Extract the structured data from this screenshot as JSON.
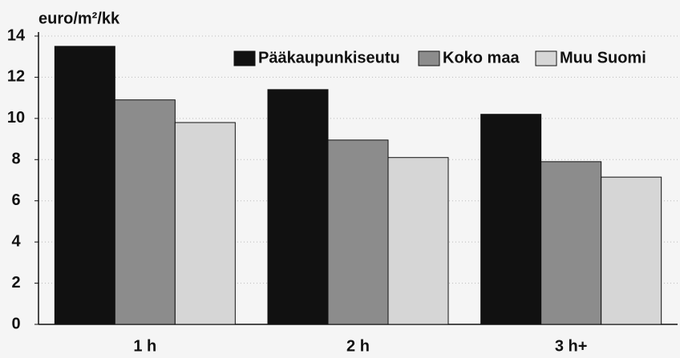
{
  "chart_data": {
    "type": "bar",
    "y_label": "euro/m²/kk",
    "categories": [
      "1 h",
      "2 h",
      "3 h+"
    ],
    "series": [
      {
        "name": "Pääkaupunkiseutu",
        "color": "#111111",
        "values": [
          13.5,
          11.4,
          10.2
        ]
      },
      {
        "name": "Koko maa",
        "color": "#8c8c8c",
        "values": [
          10.9,
          8.95,
          7.9
        ]
      },
      {
        "name": "Muu Suomi",
        "color": "#d6d6d6",
        "values": [
          9.8,
          8.1,
          7.15
        ]
      }
    ],
    "ylim": [
      0,
      14
    ],
    "yticks": [
      0,
      2,
      4,
      6,
      8,
      10,
      12,
      14
    ],
    "grid": true,
    "legend": "top-right"
  }
}
